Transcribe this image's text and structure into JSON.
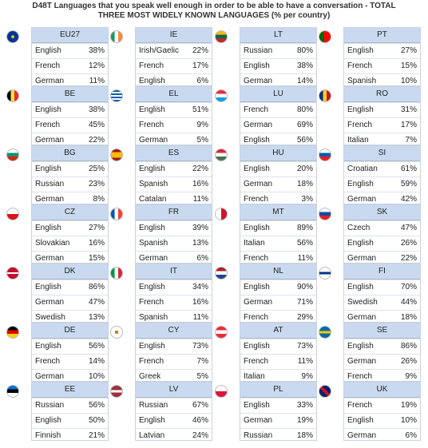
{
  "title_line1": "D48T Languages that you speak well enough in order to be able to have a conversation - TOTAL",
  "title_line2": "THREE MOST WIDELY KNOWN LANGUAGES (% per country)",
  "chart_data": {
    "type": "table",
    "title": "D48T Languages that you speak well enough in order to be able to have a conversation - TOTAL THREE MOST WIDELY KNOWN LANGUAGES (% per country)",
    "countries": [
      {
        "code": "EU27",
        "flag": "eu",
        "rows": [
          [
            "English",
            "38%"
          ],
          [
            "French",
            "12%"
          ],
          [
            "German",
            "11%"
          ]
        ]
      },
      {
        "code": "IE",
        "flag": "ie",
        "rows": [
          [
            "Irish/Gaelic",
            "22%"
          ],
          [
            "French",
            "17%"
          ],
          [
            "English",
            "6%"
          ]
        ]
      },
      {
        "code": "LT",
        "flag": "lt",
        "rows": [
          [
            "Russian",
            "80%"
          ],
          [
            "English",
            "38%"
          ],
          [
            "German",
            "14%"
          ]
        ]
      },
      {
        "code": "PT",
        "flag": "pt",
        "rows": [
          [
            "English",
            "27%"
          ],
          [
            "French",
            "15%"
          ],
          [
            "Spanish",
            "10%"
          ]
        ]
      },
      {
        "code": "BE",
        "flag": "be",
        "rows": [
          [
            "English",
            "38%"
          ],
          [
            "French",
            "45%"
          ],
          [
            "German",
            "22%"
          ]
        ]
      },
      {
        "code": "EL",
        "flag": "el",
        "rows": [
          [
            "English",
            "51%"
          ],
          [
            "French",
            "9%"
          ],
          [
            "German",
            "5%"
          ]
        ]
      },
      {
        "code": "LU",
        "flag": "lu",
        "rows": [
          [
            "French",
            "80%"
          ],
          [
            "German",
            "69%"
          ],
          [
            "English",
            "56%"
          ]
        ]
      },
      {
        "code": "RO",
        "flag": "ro",
        "rows": [
          [
            "English",
            "31%"
          ],
          [
            "French",
            "17%"
          ],
          [
            "Italian",
            "7%"
          ]
        ]
      },
      {
        "code": "BG",
        "flag": "bg",
        "rows": [
          [
            "English",
            "25%"
          ],
          [
            "Russian",
            "23%"
          ],
          [
            "German",
            "8%"
          ]
        ]
      },
      {
        "code": "ES",
        "flag": "es",
        "rows": [
          [
            "English",
            "22%"
          ],
          [
            "Spanish",
            "16%"
          ],
          [
            "Catalan",
            "11%"
          ]
        ]
      },
      {
        "code": "HU",
        "flag": "hu",
        "rows": [
          [
            "English",
            "20%"
          ],
          [
            "German",
            "18%"
          ],
          [
            "French",
            "3%"
          ]
        ]
      },
      {
        "code": "SI",
        "flag": "si",
        "rows": [
          [
            "Croatian",
            "61%"
          ],
          [
            "English",
            "59%"
          ],
          [
            "German",
            "42%"
          ]
        ]
      },
      {
        "code": "CZ",
        "flag": "cz",
        "rows": [
          [
            "English",
            "27%"
          ],
          [
            "Slovakian",
            "16%"
          ],
          [
            "German",
            "15%"
          ]
        ]
      },
      {
        "code": "FR",
        "flag": "fr",
        "rows": [
          [
            "English",
            "39%"
          ],
          [
            "Spanish",
            "13%"
          ],
          [
            "German",
            "6%"
          ]
        ]
      },
      {
        "code": "MT",
        "flag": "mt",
        "rows": [
          [
            "English",
            "89%"
          ],
          [
            "Italian",
            "56%"
          ],
          [
            "French",
            "11%"
          ]
        ]
      },
      {
        "code": "SK",
        "flag": "sk",
        "rows": [
          [
            "Czech",
            "47%"
          ],
          [
            "English",
            "26%"
          ],
          [
            "German",
            "22%"
          ]
        ]
      },
      {
        "code": "DK",
        "flag": "dk",
        "rows": [
          [
            "English",
            "86%"
          ],
          [
            "German",
            "47%"
          ],
          [
            "Swedish",
            "13%"
          ]
        ]
      },
      {
        "code": "IT",
        "flag": "it",
        "rows": [
          [
            "English",
            "34%"
          ],
          [
            "French",
            "16%"
          ],
          [
            "Spanish",
            "11%"
          ]
        ]
      },
      {
        "code": "NL",
        "flag": "nl",
        "rows": [
          [
            "English",
            "90%"
          ],
          [
            "German",
            "71%"
          ],
          [
            "French",
            "29%"
          ]
        ]
      },
      {
        "code": "FI",
        "flag": "fi",
        "rows": [
          [
            "English",
            "70%"
          ],
          [
            "Swedish",
            "44%"
          ],
          [
            "German",
            "18%"
          ]
        ]
      },
      {
        "code": "DE",
        "flag": "de",
        "rows": [
          [
            "English",
            "56%"
          ],
          [
            "French",
            "14%"
          ],
          [
            "German",
            "10%"
          ]
        ]
      },
      {
        "code": "CY",
        "flag": "cy",
        "rows": [
          [
            "English",
            "73%"
          ],
          [
            "French",
            "7%"
          ],
          [
            "Greek",
            "5%"
          ]
        ]
      },
      {
        "code": "AT",
        "flag": "at",
        "rows": [
          [
            "English",
            "73%"
          ],
          [
            "French",
            "11%"
          ],
          [
            "Italian",
            "9%"
          ]
        ]
      },
      {
        "code": "SE",
        "flag": "se",
        "rows": [
          [
            "English",
            "86%"
          ],
          [
            "German",
            "26%"
          ],
          [
            "French",
            "9%"
          ]
        ]
      },
      {
        "code": "EE",
        "flag": "ee",
        "rows": [
          [
            "Russian",
            "56%"
          ],
          [
            "English",
            "50%"
          ],
          [
            "Finnish",
            "21%"
          ]
        ]
      },
      {
        "code": "LV",
        "flag": "lv",
        "rows": [
          [
            "Russian",
            "67%"
          ],
          [
            "English",
            "46%"
          ],
          [
            "Latvian",
            "24%"
          ]
        ]
      },
      {
        "code": "PL",
        "flag": "pl",
        "rows": [
          [
            "English",
            "33%"
          ],
          [
            "German",
            "19%"
          ],
          [
            "Russian",
            "18%"
          ]
        ]
      },
      {
        "code": "UK",
        "flag": "uk",
        "rows": [
          [
            "French",
            "19%"
          ],
          [
            "English",
            "10%"
          ],
          [
            "German",
            "6%"
          ]
        ]
      }
    ]
  }
}
